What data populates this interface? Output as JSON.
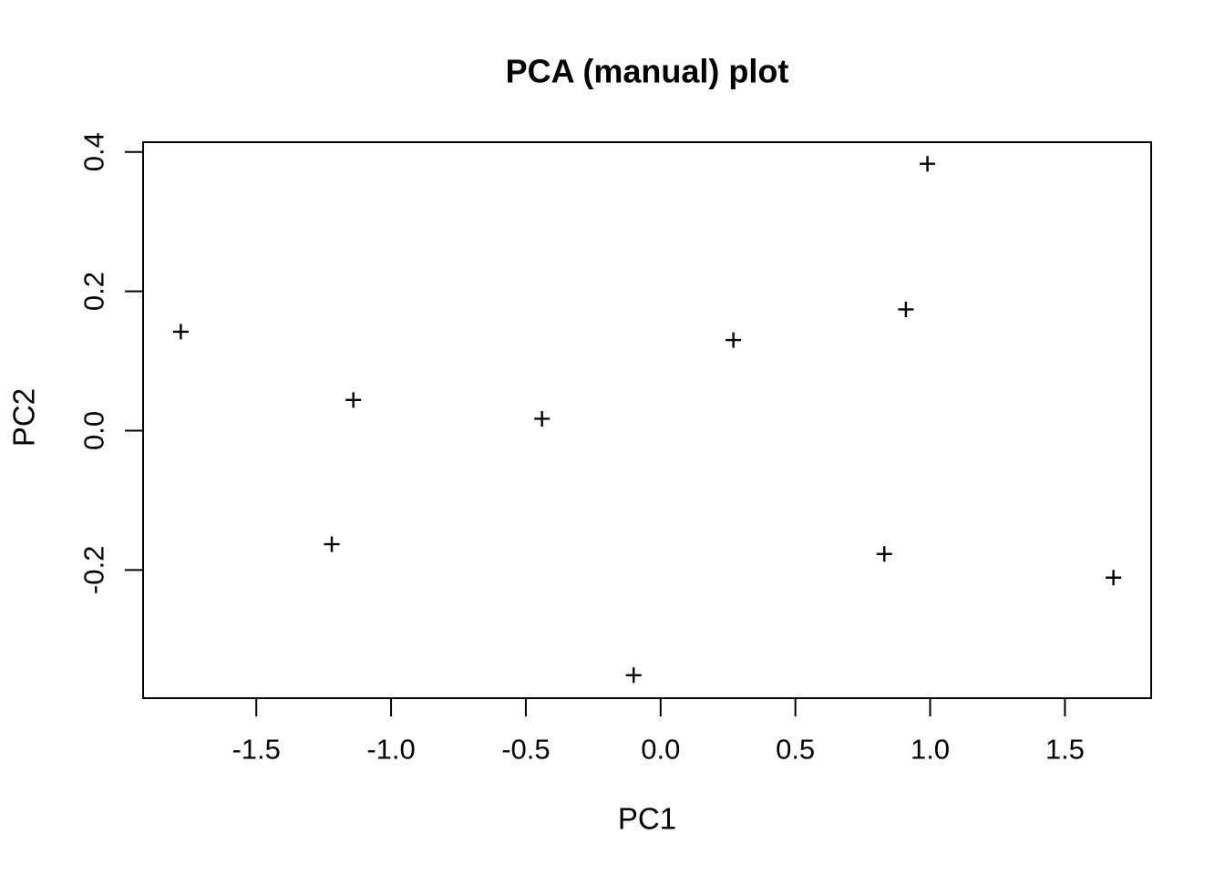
{
  "figure": {
    "background": "#ffffff",
    "foreground": "#000000"
  },
  "chart_data": {
    "type": "scatter",
    "title": "PCA (manual) plot",
    "xlabel": "PC1",
    "ylabel": "PC2",
    "marker": "plus",
    "marker_color": "#000000",
    "background": "#ffffff",
    "grid": false,
    "legend": null,
    "xlim": [
      -1.92,
      1.82
    ],
    "ylim": [
      -0.384,
      0.414
    ],
    "x_ticks": [
      -1.5,
      -1.0,
      -0.5,
      0.0,
      0.5,
      1.0,
      1.5
    ],
    "x_tick_labels": [
      "-1.5",
      "-1.0",
      "-0.5",
      "0.0",
      "0.5",
      "1.0",
      "1.5"
    ],
    "y_ticks": [
      -0.2,
      0.0,
      0.2,
      0.4
    ],
    "y_tick_labels": [
      "-0.2",
      "0.0",
      "0.2",
      "0.4"
    ],
    "points": [
      {
        "x": -1.78,
        "y": 0.142
      },
      {
        "x": -1.22,
        "y": -0.163
      },
      {
        "x": -1.14,
        "y": 0.044
      },
      {
        "x": -0.44,
        "y": 0.017
      },
      {
        "x": -0.1,
        "y": -0.351
      },
      {
        "x": 0.27,
        "y": 0.13
      },
      {
        "x": 0.83,
        "y": -0.177
      },
      {
        "x": 0.91,
        "y": 0.174
      },
      {
        "x": 0.99,
        "y": 0.383
      },
      {
        "x": 1.68,
        "y": -0.211
      }
    ]
  }
}
